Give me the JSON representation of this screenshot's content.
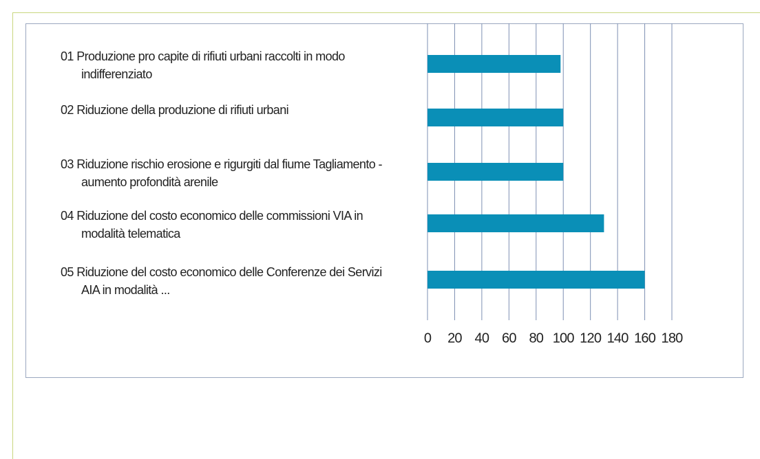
{
  "chart_data": {
    "type": "barh",
    "categories": [
      "01 Produzione pro capite di rifiuti urbani raccolti in modo indifferenziato",
      "02 Riduzione della produzione di rifiuti urbani",
      "03 Riduzione rischio erosione e rigurgiti dal fiume Tagliamento - aumento profondità arenile",
      "04 Riduzione del costo economico delle commissioni VIA in modalità telematica",
      "05 Riduzione del costo economico delle Conferenze dei Servizi AIA in modalità ..."
    ],
    "values": [
      98,
      100,
      100,
      130,
      160
    ],
    "color": "#0a8fb7",
    "xlim": [
      0,
      180
    ],
    "xticks": [
      0,
      20,
      40,
      60,
      80,
      100,
      120,
      140,
      160,
      180
    ],
    "grid": true
  }
}
